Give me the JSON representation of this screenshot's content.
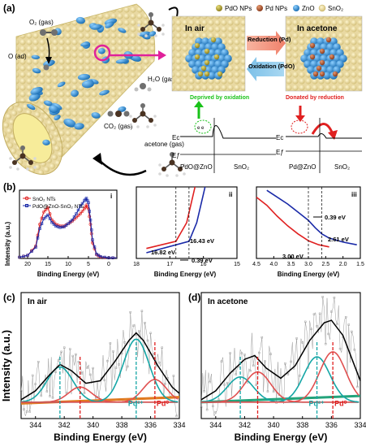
{
  "panels": {
    "a": {
      "label": "(a)",
      "gas_labels": [
        "O₂ (gas)",
        "O (ad)",
        "H₂O (gas)",
        "CO₂ (gas)",
        "acetone (gas)"
      ],
      "legend": [
        "PdO NPs",
        "Pd NPs",
        "ZnO",
        "SnO₂"
      ],
      "in_air": "In air",
      "in_acetone": "In acetone",
      "reduction": "Reduction (Pd)",
      "oxidation": "Oxidation (PdO)",
      "deprived": "Deprived by oxidation",
      "donated": "Donated by reduction",
      "ec": "Eᴄ",
      "ef": "Eƒ",
      "left_band_labels": [
        "PdO@ZnO",
        "SnO₂"
      ],
      "right_band_labels": [
        "Pd@ZnO",
        "SnO₂"
      ],
      "colors": {
        "pdo": "#b5a52e",
        "pd": "#b5603c",
        "zno": "#2f8fd0",
        "sno2": "#e8d9a0",
        "green": "#19c219",
        "red": "#e02020",
        "magenta": "#e0219a"
      }
    },
    "b": {
      "label": "(b)",
      "sub_i": "i",
      "sub_ii": "ii",
      "sub_iii": "iii",
      "ylabel": "Intensity (a.u.)",
      "xlabel": "Binding Energy (eV)",
      "legend": [
        "SnO₂ NTs",
        "PdO@ZnO-SnO₂ NTs"
      ],
      "ann_ii": [
        "16.43 eV",
        "16.82 eV",
        "0.39 eV"
      ],
      "ann_iii": [
        "0.39 eV",
        "2.61 eV",
        "3.00 eV"
      ]
    },
    "c": {
      "label": "(c)",
      "title": "In air",
      "pd2": "Pd²⁺",
      "pd0": "Pd⁰"
    },
    "d": {
      "label": "(d)",
      "title": "In acetone",
      "pd2": "Pd²⁺",
      "pd0": "Pd⁰"
    },
    "cd_ylabel": "Intensity (a.u.)",
    "cd_xlabel": "Binding Energy (eV)"
  },
  "chart_data": [
    {
      "type": "line",
      "id": "b-i",
      "xlabel": "Binding Energy (eV)",
      "ylabel": "Intensity (a.u.)",
      "xlim": [
        22,
        -2
      ],
      "xticks": [
        20,
        15,
        10,
        5,
        0
      ],
      "series": [
        {
          "name": "SnO₂ NTs",
          "color": "#e02020",
          "x": [
            22,
            20,
            18,
            17,
            16,
            15,
            14,
            13,
            12,
            11,
            10,
            9,
            8,
            7,
            6,
            5.5,
            5,
            4.5,
            4,
            3,
            2,
            0,
            -2
          ],
          "y": [
            0.02,
            0.05,
            0.2,
            0.55,
            0.75,
            0.82,
            0.62,
            0.55,
            0.52,
            0.52,
            0.56,
            0.6,
            0.66,
            0.72,
            0.8,
            0.86,
            0.8,
            0.55,
            0.25,
            0.06,
            0.02,
            0.01,
            0.01
          ]
        },
        {
          "name": "PdO@ZnO-SnO₂ NTs",
          "color": "#1a2aa8",
          "x": [
            22,
            20,
            18,
            17,
            16,
            15,
            14,
            13,
            12,
            11,
            10,
            9,
            8,
            7,
            6,
            5.5,
            5,
            4.5,
            4,
            3,
            2,
            0,
            -2
          ],
          "y": [
            0.02,
            0.05,
            0.18,
            0.48,
            0.64,
            0.7,
            0.58,
            0.52,
            0.5,
            0.51,
            0.56,
            0.62,
            0.72,
            0.84,
            0.93,
            0.97,
            0.9,
            0.62,
            0.3,
            0.07,
            0.03,
            0.01,
            0.01
          ]
        }
      ]
    },
    {
      "type": "line",
      "id": "b-ii",
      "xlabel": "Binding Energy (eV)",
      "ylabel": "Intensity (a.u.)",
      "xlim": [
        18,
        15
      ],
      "xticks": [
        18,
        17,
        16,
        15
      ],
      "series": [
        {
          "name": "SnO₂ NTs",
          "color": "#e02020",
          "x": [
            17.7,
            16.82,
            16.5,
            16.35,
            16.25
          ],
          "y": [
            0.14,
            0.24,
            0.5,
            0.8,
            1.0
          ]
        },
        {
          "name": "PdO@ZnO-SnO₂ NTs",
          "color": "#1a2aa8",
          "x": [
            17.7,
            16.43,
            16.2,
            16.05,
            15.95
          ],
          "y": [
            0.08,
            0.24,
            0.5,
            0.8,
            1.0
          ]
        }
      ],
      "annotations": [
        {
          "text": "16.43 eV",
          "x": 16.43
        },
        {
          "text": "16.82 eV",
          "x": 16.82
        },
        {
          "text": "0.39 eV"
        }
      ]
    },
    {
      "type": "line",
      "id": "b-iii",
      "xlabel": "Binding Energy (eV)",
      "ylabel": "Intensity (a.u.)",
      "xlim": [
        4.5,
        1.5
      ],
      "xticks": [
        4.5,
        4.0,
        3.5,
        3.0,
        2.5,
        2.0,
        1.5
      ],
      "series": [
        {
          "name": "SnO₂ NTs",
          "color": "#e02020",
          "x": [
            4.5,
            4.2,
            3.9,
            3.6,
            3.3,
            3.0,
            2.7,
            2.4
          ],
          "y": [
            0.9,
            0.78,
            0.62,
            0.48,
            0.36,
            0.26,
            0.2,
            0.17
          ]
        },
        {
          "name": "PdO@ZnO-SnO₂ NTs",
          "color": "#1a2aa8",
          "x": [
            4.2,
            3.9,
            3.6,
            3.3,
            3.0,
            2.8,
            2.61,
            2.4,
            2.0,
            1.6
          ],
          "y": [
            1.0,
            0.9,
            0.8,
            0.68,
            0.56,
            0.45,
            0.36,
            0.3,
            0.24,
            0.2
          ]
        }
      ],
      "annotations": [
        {
          "text": "0.39 eV"
        },
        {
          "text": "2.61 eV",
          "x": 2.61
        },
        {
          "text": "3.00 eV",
          "x": 3.0
        }
      ]
    },
    {
      "type": "line",
      "id": "c",
      "title": "In air",
      "xlabel": "Binding Energy (eV)",
      "ylabel": "Intensity (a.u.)",
      "xlim": [
        345,
        334
      ],
      "xticks": [
        344,
        342,
        340,
        338,
        336,
        334
      ],
      "peaks": [
        {
          "label": "Pd²⁺",
          "x": 337.0,
          "color": "#15a6a6"
        },
        {
          "label": "Pd⁰",
          "x": 335.7,
          "color": "#e02020"
        }
      ],
      "secondary_peaks": [
        342.3,
        340.9
      ],
      "series": [
        {
          "name": "fit",
          "color": "#000000",
          "x": [
            345,
            344,
            343,
            342.3,
            341.5,
            340.5,
            339.5,
            338.5,
            337.5,
            337.0,
            336.5,
            335.5,
            334.5,
            334
          ],
          "y": [
            0.15,
            0.22,
            0.35,
            0.43,
            0.38,
            0.28,
            0.3,
            0.45,
            0.62,
            0.68,
            0.62,
            0.42,
            0.25,
            0.2
          ]
        },
        {
          "name": "background",
          "color": "#e07a20",
          "x": [
            345,
            334
          ],
          "y": [
            0.12,
            0.17
          ]
        }
      ]
    },
    {
      "type": "line",
      "id": "d",
      "title": "In acetone",
      "xlabel": "Binding Energy (eV)",
      "ylabel": "Intensity (a.u.)",
      "xlim": [
        345,
        334
      ],
      "xticks": [
        344,
        342,
        340,
        338,
        336,
        334
      ],
      "peaks": [
        {
          "label": "Pd²⁺",
          "x": 337.0,
          "color": "#15a6a6"
        },
        {
          "label": "Pd⁰",
          "x": 335.9,
          "color": "#e02020"
        }
      ],
      "secondary_peaks": [
        342.3,
        341.1
      ],
      "series": [
        {
          "name": "fit",
          "color": "#000000",
          "x": [
            345,
            344,
            343,
            342,
            341.3,
            340.5,
            339.5,
            338.5,
            337.5,
            336.5,
            336.0,
            335.2,
            334.5,
            334
          ],
          "y": [
            0.15,
            0.22,
            0.36,
            0.47,
            0.5,
            0.4,
            0.32,
            0.42,
            0.62,
            0.76,
            0.78,
            0.66,
            0.45,
            0.3
          ]
        },
        {
          "name": "background",
          "color": "#22a37a",
          "x": [
            345,
            334
          ],
          "y": [
            0.13,
            0.18
          ]
        }
      ]
    }
  ]
}
